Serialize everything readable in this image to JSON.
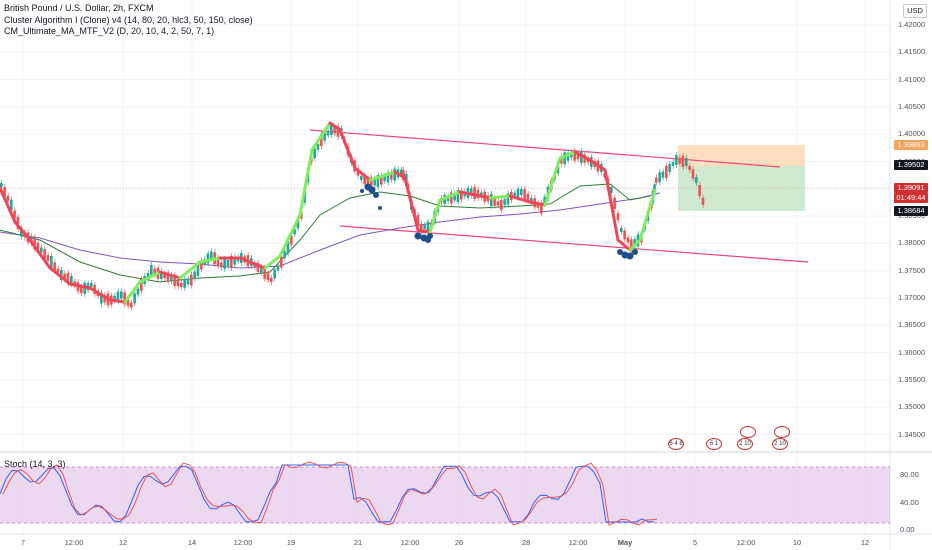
{
  "legend": {
    "symbol_line": "British Pound / U.S. Dollar, 2h, FXCM",
    "indicator_1": "Cluster Algorithm I (Clone) v4 (14, 80, 20, hlc3, 50, 150, close)",
    "indicator_2": "CM_Ultimate_MA_MTF_V2 (D, 20, 10, 4, 2, 50, 7, 1)"
  },
  "currency_button": "USD",
  "price_axis": {
    "labels": [
      "1.42000",
      "1.41500",
      "1.41000",
      "1.40500",
      "1.40000",
      "1.39500",
      "1.39000",
      "1.38500",
      "1.38000",
      "1.37500",
      "1.37000",
      "1.36500",
      "1.36000",
      "1.35500",
      "1.35000",
      "1.34500"
    ],
    "tags": {
      "target": {
        "value": "1.39863",
        "color": "#f5a35c"
      },
      "entry": {
        "value": "1.39502",
        "color": "#131722"
      },
      "current": {
        "value": "1.39091",
        "color": "#d32f2f"
      },
      "countdown": {
        "value": "01:49:44",
        "color": "#d32f2f"
      },
      "stop": {
        "value": "1.38684",
        "color": "#131722"
      }
    }
  },
  "stoch": {
    "legend": "Stoch (14, 3, 3)",
    "labels": [
      "80.00",
      "40.00",
      "0.00"
    ]
  },
  "time_axis": {
    "labels": [
      {
        "text": "7",
        "key": "d0"
      },
      {
        "text": "12:00",
        "key": "d1"
      },
      {
        "text": "12",
        "key": "d2"
      },
      {
        "text": "14",
        "key": "d3"
      },
      {
        "text": "12:00",
        "key": "d4"
      },
      {
        "text": "19",
        "key": "d5"
      },
      {
        "text": "21",
        "key": "d6"
      },
      {
        "text": "12:00",
        "key": "d7"
      },
      {
        "text": "26",
        "key": "d8"
      },
      {
        "text": "28",
        "key": "d9"
      },
      {
        "text": "12:00",
        "key": "d10"
      },
      {
        "text": "May",
        "key": "d11"
      },
      {
        "text": "5",
        "key": "d12"
      },
      {
        "text": "12:00",
        "key": "d13"
      },
      {
        "text": "10",
        "key": "d14"
      },
      {
        "text": "12",
        "key": "d15"
      }
    ]
  },
  "events": [
    {
      "text": "6 4 8",
      "key": "e0"
    },
    {
      "text": "6 1",
      "key": "e1"
    },
    {
      "text": "2 10",
      "key": "e2"
    },
    {
      "text": "2 10",
      "key": "e3"
    }
  ],
  "colors": {
    "up_candle": "#26a69a",
    "down_candle": "#ef5350",
    "channel": "#f0467a",
    "ma_green": "#2e7d32",
    "ma_purple": "#7e57c2",
    "stoch_fill": "#e1bee7",
    "stoch_k": "#2962ff",
    "stoch_d": "#ef5350",
    "long_target": "#fbd9b3",
    "long_stop": "#c8e6c9"
  }
}
